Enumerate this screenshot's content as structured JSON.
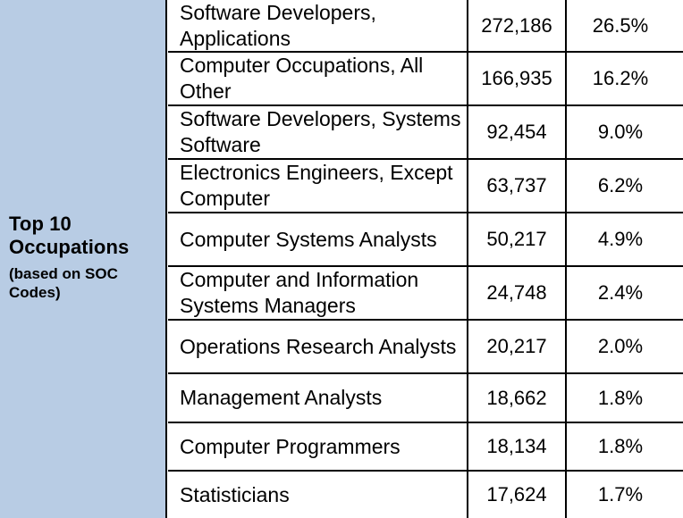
{
  "group_label": {
    "title": "Top 10 Occupations",
    "title_line1": "Top 10",
    "title_line2": "Occupations",
    "subtitle_line1": "(based on SOC",
    "subtitle_line2": "Codes)"
  },
  "colors": {
    "left_panel_bg": "#b8cce4",
    "border": "#000000",
    "background": "#ffffff"
  },
  "rows": [
    {
      "occupation": "Software Developers, Applications",
      "count": "272,186",
      "percent": "26.5%"
    },
    {
      "occupation": "Computer Occupations, All Other",
      "count": "166,935",
      "percent": "16.2%"
    },
    {
      "occupation": "Software Developers, Systems Software",
      "count": "92,454",
      "percent": "9.0%"
    },
    {
      "occupation": "Electronics Engineers, Except Computer",
      "count": "63,737",
      "percent": "6.2%"
    },
    {
      "occupation": "Computer Systems Analysts",
      "count": "50,217",
      "percent": "4.9%"
    },
    {
      "occupation": "Computer and Information Systems Managers",
      "count": "24,748",
      "percent": "2.4%"
    },
    {
      "occupation": "Operations Research Analysts",
      "count": "20,217",
      "percent": "2.0%"
    },
    {
      "occupation": "Management Analysts",
      "count": "18,662",
      "percent": "1.8%"
    },
    {
      "occupation": "Computer Programmers",
      "count": "18,134",
      "percent": "1.8%"
    },
    {
      "occupation": "Statisticians",
      "count": "17,624",
      "percent": "1.7%"
    }
  ]
}
